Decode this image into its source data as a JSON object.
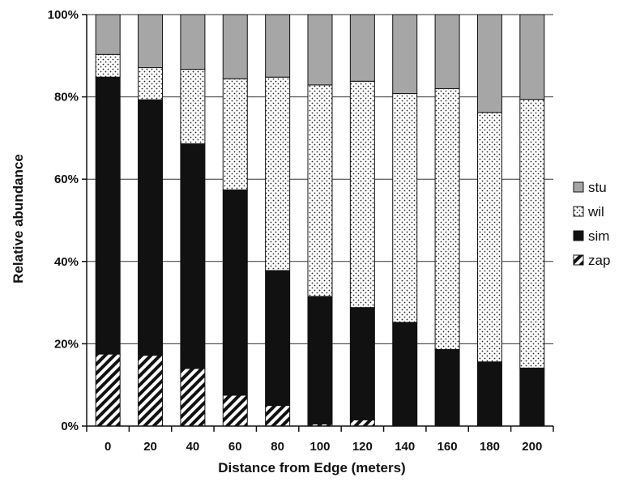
{
  "chart_data": {
    "type": "bar",
    "stacked": true,
    "percent": true,
    "xlabel": "Distance from Edge (meters)",
    "ylabel": "Relative abundance",
    "categories": [
      "0",
      "20",
      "40",
      "60",
      "80",
      "100",
      "120",
      "140",
      "160",
      "180",
      "200"
    ],
    "y_ticks": [
      "0%",
      "20%",
      "40%",
      "60%",
      "80%",
      "100%"
    ],
    "ylim": [
      0,
      100
    ],
    "grid": true,
    "legend_position": "right",
    "series": [
      {
        "name": "zap",
        "pattern": "diagonal-hatch",
        "values": [
          17.5,
          17.2,
          14.0,
          7.5,
          5.0,
          0.5,
          1.5,
          0,
          0,
          0,
          0
        ]
      },
      {
        "name": "sim",
        "pattern": "solid-black",
        "values": [
          67.3,
          62.1,
          54.6,
          49.9,
          32.8,
          31.0,
          27.3,
          25.2,
          18.6,
          15.6,
          14.1
        ]
      },
      {
        "name": "wil",
        "pattern": "dotted",
        "values": [
          5.5,
          7.8,
          18.1,
          27.0,
          47.0,
          51.4,
          55.0,
          55.6,
          63.4,
          60.6,
          65.3
        ]
      },
      {
        "name": "stu",
        "pattern": "solid-gray",
        "values": [
          9.7,
          12.9,
          13.3,
          15.6,
          15.2,
          17.1,
          16.2,
          19.2,
          18.0,
          23.8,
          20.6
        ]
      }
    ]
  }
}
